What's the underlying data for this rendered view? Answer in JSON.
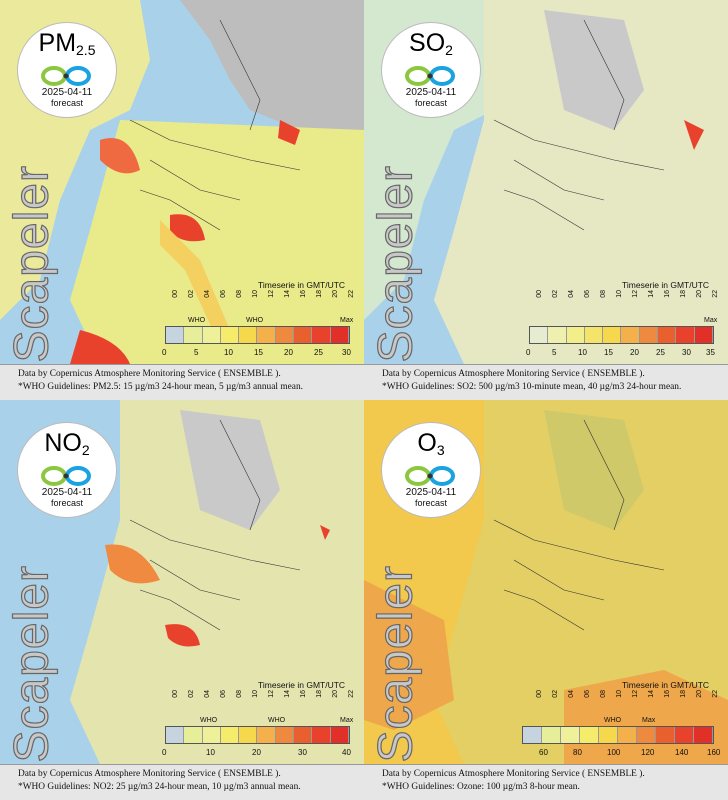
{
  "panels": [
    {
      "pollutant": "PM",
      "sub": "2.5",
      "date": "2025-04-11",
      "forecast": "forecast",
      "watermark": "Scapeler",
      "timeserie": "Timeserie in GMT/UTC",
      "hours": [
        "00",
        "02",
        "04",
        "06",
        "08",
        "10",
        "12",
        "14",
        "16",
        "18",
        "20",
        "22"
      ],
      "scale": [
        "0",
        "5",
        "10",
        "15",
        "20",
        "25",
        "30"
      ],
      "who": "WHO",
      "max": "Max",
      "caption1": "Data by Copernicus Atmosphere Monitoring Service ( ENSEMBLE ).",
      "caption2": "*WHO Guidelines: PM2.5: 15 µg/m3 24-hour mean, 5 µg/m3 annual mean."
    },
    {
      "pollutant": "SO",
      "sub": "2",
      "date": "2025-04-11",
      "forecast": "forecast",
      "watermark": "Scapeler",
      "timeserie": "Timeserie in GMT/UTC",
      "hours": [
        "00",
        "02",
        "04",
        "06",
        "08",
        "10",
        "12",
        "14",
        "16",
        "18",
        "20",
        "22"
      ],
      "scale": [
        "0",
        "5",
        "10",
        "15",
        "20",
        "25",
        "30",
        "35"
      ],
      "who": "",
      "max": "Max",
      "caption1": "Data by Copernicus Atmosphere Monitoring Service ( ENSEMBLE ).",
      "caption2": "*WHO Guidelines: SO2: 500 µg/m3 10-minute mean, 40 µg/m3 24-hour mean."
    },
    {
      "pollutant": "NO",
      "sub": "2",
      "date": "2025-04-11",
      "forecast": "forecast",
      "watermark": "Scapeler",
      "timeserie": "Timeserie in GMT/UTC",
      "hours": [
        "00",
        "02",
        "04",
        "06",
        "08",
        "10",
        "12",
        "14",
        "16",
        "18",
        "20",
        "22"
      ],
      "scale": [
        "0",
        "10",
        "20",
        "30",
        "40"
      ],
      "who": "WHO",
      "max": "Max",
      "caption1": "Data by Copernicus Atmosphere Monitoring Service ( ENSEMBLE ).",
      "caption2": "*WHO Guidelines: NO2: 25 µg/m3 24-hour mean, 10 µg/m3 annual mean."
    },
    {
      "pollutant": "O",
      "sub": "3",
      "date": "2025-04-11",
      "forecast": "forecast",
      "watermark": "Scapeler",
      "timeserie": "Timeserie in GMT/UTC",
      "hours": [
        "00",
        "02",
        "04",
        "06",
        "08",
        "10",
        "12",
        "14",
        "16",
        "18",
        "20",
        "22"
      ],
      "scale": [
        "60",
        "80",
        "100",
        "120",
        "140",
        "160"
      ],
      "who": "WHO",
      "max": "Max",
      "caption1": "Data by Copernicus Atmosphere Monitoring Service ( ENSEMBLE ).",
      "caption2": "*WHO Guidelines: Ozone: 100 µg/m3 8-hour mean."
    }
  ],
  "colors": {
    "sea": "#a9d2ea",
    "land": "#bfbfbf",
    "pm_low": "#f3e676",
    "pm_high": "#e8422c",
    "so_low": "#e9ecc8",
    "o3": "#f0c84a"
  }
}
